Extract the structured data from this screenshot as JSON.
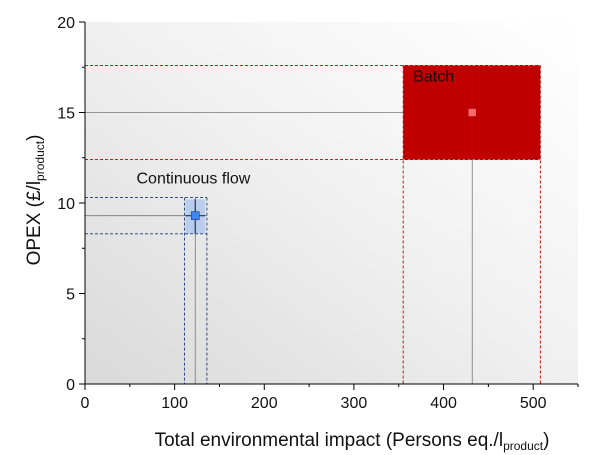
{
  "chart_data": {
    "type": "scatter",
    "xlabel": {
      "main": "Total environmental impact (Persons eq./l",
      "sub": "product",
      "end": ")"
    },
    "ylabel": {
      "main": "OPEX (£/l",
      "sub": "product",
      "end": ")"
    },
    "xlim": [
      0,
      550
    ],
    "ylim": [
      0,
      20
    ],
    "x_ticks": [
      0,
      100,
      200,
      300,
      400,
      500
    ],
    "y_ticks": [
      0,
      5,
      10,
      15,
      20
    ],
    "grid": false,
    "background": "gradient-grey",
    "series": [
      {
        "name": "Batch",
        "x": 432,
        "y": 15.0,
        "x_range": [
          355,
          508
        ],
        "y_range": [
          12.4,
          17.6
        ],
        "x_box": [
          355,
          508
        ],
        "y_box": [
          12.4,
          17.6
        ],
        "color": "#c00000",
        "marker_color": "#ff6b6b"
      },
      {
        "name": "Continuous flow",
        "x": 123,
        "y": 9.3,
        "x_range": [
          111,
          136
        ],
        "y_range": [
          8.3,
          10.3
        ],
        "x_box": [
          112,
          134
        ],
        "y_box": [
          8.3,
          10.2
        ],
        "color": "#1f3b70",
        "marker_color": "#3f86f2"
      }
    ]
  }
}
